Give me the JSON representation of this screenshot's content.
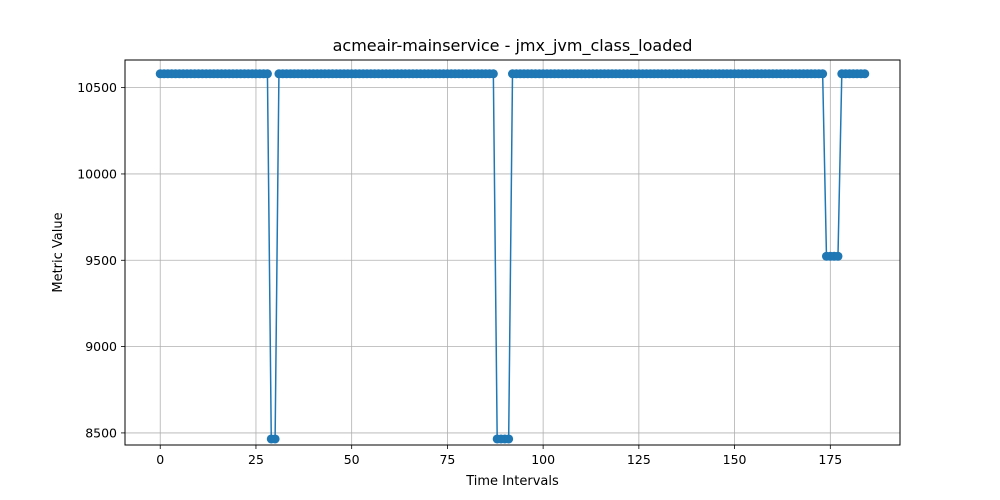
{
  "chart_data": {
    "type": "line",
    "title": "acmeair-mainservice - jmx_jvm_class_loaded",
    "xlabel": "Time Intervals",
    "ylabel": "Metric Value",
    "xlim": [
      -9.2,
      193.2
    ],
    "ylim": [
      8430,
      10660
    ],
    "xticks": [
      0,
      25,
      50,
      75,
      100,
      125,
      150,
      175
    ],
    "yticks": [
      8500,
      9000,
      9500,
      10000,
      10500
    ],
    "grid": true,
    "legend": "none",
    "series": [
      {
        "color": "#1f77b4",
        "marker": "circle",
        "segments": [
          {
            "x_start": 0,
            "x_end": 28,
            "value": 10580
          },
          {
            "x_start": 29,
            "x_end": 30,
            "value": 8465
          },
          {
            "x_start": 31,
            "x_end": 87,
            "value": 10580
          },
          {
            "x_start": 88,
            "x_end": 91,
            "value": 8465
          },
          {
            "x_start": 92,
            "x_end": 173,
            "value": 10580
          },
          {
            "x_start": 174,
            "x_end": 177,
            "value": 9523
          },
          {
            "x_start": 178,
            "x_end": 184,
            "value": 10580
          }
        ]
      }
    ]
  }
}
